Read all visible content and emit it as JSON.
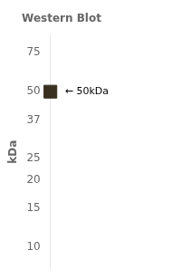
{
  "chart_data": {
    "type": "line",
    "title": "Western Blot",
    "ylabel": "kDa",
    "categories": [
      null
    ],
    "values": [
      50
    ],
    "color": "#3a3020",
    "marker": "rect",
    "line_style": "none",
    "log": "y",
    "ylim": [
      8,
      90
    ],
    "yticks": [
      10,
      15,
      20,
      25,
      37,
      50,
      75
    ],
    "grid": false,
    "tick_labels": "y",
    "annotations": [
      {
        "text": "← 50kDa",
        "y": 50
      }
    ]
  }
}
